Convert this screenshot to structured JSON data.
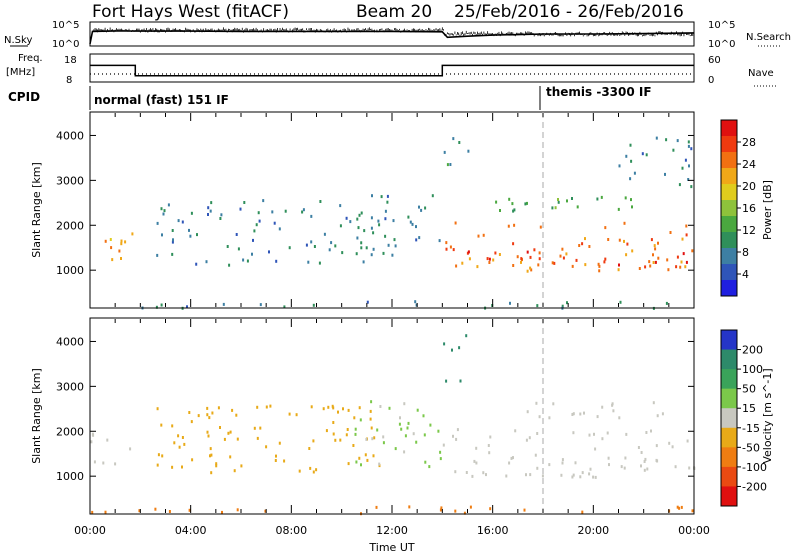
{
  "header": {
    "station": "Fort Hays West (fitACF)",
    "beam": "Beam 20",
    "date_range": "25/Feb/2016 - 26/Feb/2016"
  },
  "labels": {
    "nsky": "N.Sky",
    "nsearch": "N.Search",
    "freq": "Freq.",
    "freq_unit": "[MHz]",
    "nave": "Nave",
    "cpid": "CPID",
    "noise_ticks": [
      "10^5",
      "10^0"
    ],
    "freq_ticks": [
      "18",
      "8"
    ],
    "nave_ticks": [
      "60",
      "0"
    ],
    "cpid_left": "normal (fast) 151 IF",
    "cpid_right": "themis -3300 IF"
  },
  "chart_data": [
    {
      "type": "line",
      "panel": "noise",
      "series": [
        {
          "name": "N.Sky",
          "x": [
            0.0,
            0.1,
            1.0,
            2.0,
            4.0,
            6.0,
            8.0,
            10.0,
            12.0,
            14.0,
            14.2,
            15.0,
            16.0,
            18.0,
            20.0,
            22.0,
            24.0
          ],
          "y_frac": [
            0.05,
            0.62,
            0.64,
            0.63,
            0.63,
            0.62,
            0.62,
            0.62,
            0.62,
            0.6,
            0.35,
            0.4,
            0.45,
            0.5,
            0.5,
            0.52,
            0.55
          ]
        }
      ]
    },
    {
      "type": "line",
      "panel": "freq-nave",
      "series": [
        {
          "name": "Freq.",
          "x": [
            0,
            1.8,
            1.8,
            14.0,
            14.0,
            24
          ],
          "y": [
            14,
            14,
            10,
            10,
            14,
            14
          ]
        },
        {
          "name": "Nave",
          "x": [
            0,
            24
          ],
          "y": [
            14,
            14
          ]
        }
      ]
    },
    {
      "type": "heatmap",
      "panel": "power",
      "title": "",
      "xlabel": "",
      "ylabel": "Slant Range [km]",
      "colorbar_label": "Power [dB]",
      "colorbar_ticks": [
        4,
        8,
        12,
        16,
        20,
        24,
        28
      ],
      "colorbar_range": [
        0,
        32
      ],
      "x_ticks": [
        "00:00",
        "04:00",
        "08:00",
        "12:00",
        "16:00",
        "20:00",
        "00:00"
      ],
      "xlim": [
        0,
        24
      ],
      "y_ticks": [
        1000,
        2000,
        3000,
        4000
      ],
      "ylim": [
        180,
        4500
      ],
      "features": [
        {
          "t0": 0.0,
          "t1": 1.8,
          "r0": 1250,
          "r1": 1950,
          "value": 22
        },
        {
          "t0": 0.5,
          "t1": 1.6,
          "r0": 1400,
          "r1": 1700,
          "value": 26
        },
        {
          "t0": 2.5,
          "t1": 11.5,
          "r0": 1100,
          "r1": 2600,
          "value": 8
        },
        {
          "t0": 10.5,
          "t1": 13.9,
          "r0": 1200,
          "r1": 2700,
          "value": 8
        },
        {
          "t0": 14.0,
          "t1": 24.0,
          "r0": 1000,
          "r1": 2100,
          "value": 24
        },
        {
          "t0": 14.2,
          "t1": 23.8,
          "r0": 1100,
          "r1": 1500,
          "value": 28
        },
        {
          "t0": 16.0,
          "t1": 23.0,
          "r0": 2300,
          "r1": 2700,
          "value": 12
        },
        {
          "t0": 14.0,
          "t1": 15.0,
          "r0": 3100,
          "r1": 4200,
          "value": 10
        },
        {
          "t0": 21.0,
          "t1": 23.9,
          "r0": 2800,
          "r1": 4000,
          "value": 8
        },
        {
          "t0": 0.0,
          "t1": 24.0,
          "r0": 180,
          "r1": 350,
          "value": 8
        }
      ]
    },
    {
      "type": "heatmap",
      "panel": "velocity",
      "title": "",
      "xlabel": "Time UT",
      "ylabel": "Slant Range [km]",
      "colorbar_label": "Velocity [m s^-1]",
      "colorbar_ticks": [
        200,
        100,
        50,
        15,
        -15,
        -50,
        -100,
        -200
      ],
      "colorbar_range": [
        -250,
        250
      ],
      "x_ticks": [
        "00:00",
        "04:00",
        "08:00",
        "12:00",
        "16:00",
        "20:00",
        "00:00"
      ],
      "xlim": [
        0,
        24
      ],
      "y_ticks": [
        1000,
        2000,
        3000,
        4000
      ],
      "ylim": [
        180,
        4500
      ],
      "features": [
        {
          "t0": 0.0,
          "t1": 1.8,
          "r0": 1250,
          "r1": 2000,
          "value": 0
        },
        {
          "t0": 2.5,
          "t1": 11.5,
          "r0": 1100,
          "r1": 2600,
          "value": -30
        },
        {
          "t0": 10.5,
          "t1": 13.9,
          "r0": 1200,
          "r1": 2700,
          "value": 20
        },
        {
          "t0": 14.0,
          "t1": 24.0,
          "r0": 1000,
          "r1": 2100,
          "value": 0
        },
        {
          "t0": 16.0,
          "t1": 23.0,
          "r0": 2300,
          "r1": 2700,
          "value": 0
        },
        {
          "t0": 14.0,
          "t1": 15.0,
          "r0": 3100,
          "r1": 4200,
          "value": 150
        },
        {
          "t0": 0.0,
          "t1": 24.0,
          "r0": 180,
          "r1": 350,
          "value": -60
        }
      ]
    }
  ]
}
